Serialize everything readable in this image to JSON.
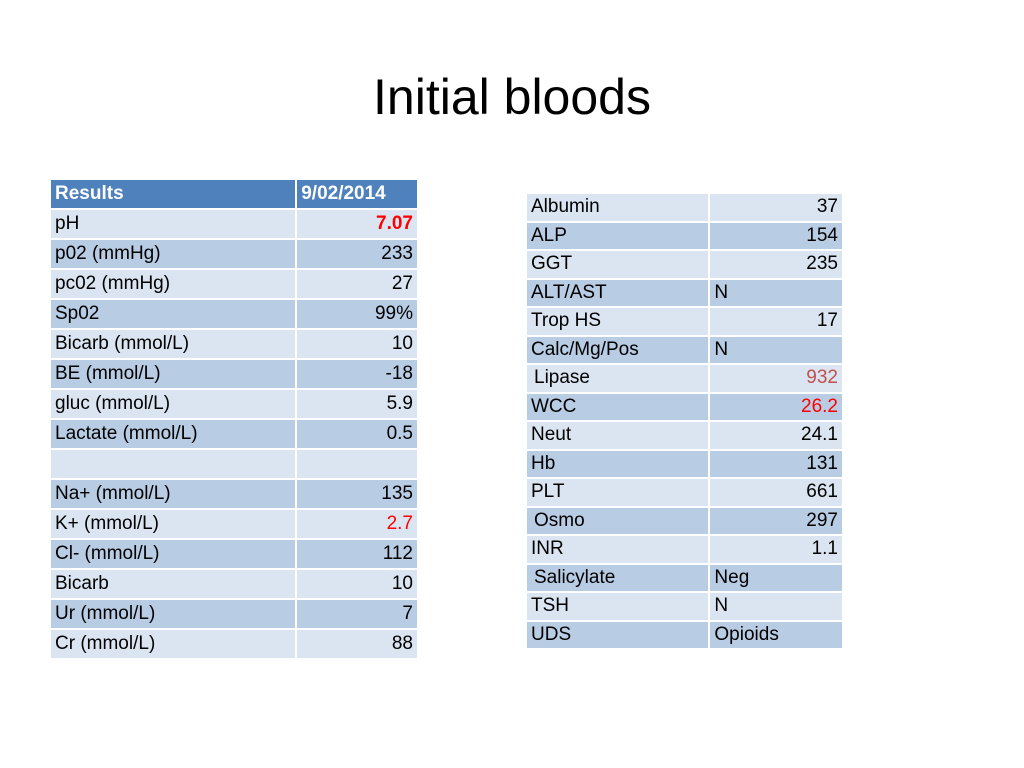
{
  "title": "Initial bloods",
  "left_table": {
    "header": [
      "Results",
      "9/02/2014"
    ],
    "rows": [
      {
        "label": "pH",
        "value": "7.07",
        "highlight": "red-bold"
      },
      {
        "label": "p02 (mmHg)",
        "value": "233"
      },
      {
        "label": "pc02 (mmHg)",
        "value": "27"
      },
      {
        "label": "Sp02",
        "value": "99%"
      },
      {
        "label": "Bicarb (mmol/L)",
        "value": "10"
      },
      {
        "label": "BE (mmol/L)",
        "value": "-18"
      },
      {
        "label": "gluc (mmol/L)",
        "value": "5.9"
      },
      {
        "label": "Lactate (mmol/L)",
        "value": "0.5"
      },
      {
        "label": "",
        "value": ""
      },
      {
        "label": "Na+ (mmol/L)",
        "value": "135"
      },
      {
        "label": "K+ (mmol/L)",
        "value": "2.7",
        "highlight": "red"
      },
      {
        "label": "Cl- (mmol/L)",
        "value": "112"
      },
      {
        "label": "Bicarb",
        "value": "10"
      },
      {
        "label": "Ur (mmol/L)",
        "value": "7"
      },
      {
        "label": "Cr (mmol/L)",
        "value": "88"
      }
    ]
  },
  "right_table": {
    "rows": [
      {
        "label": "Albumin",
        "value": "37"
      },
      {
        "label": "ALP",
        "value": "154"
      },
      {
        "label": "GGT",
        "value": "235"
      },
      {
        "label": "ALT/AST",
        "value": "N",
        "align": "left"
      },
      {
        "label": "Trop HS",
        "value": "17"
      },
      {
        "label": "Calc/Mg/Pos",
        "value": "N",
        "align": "left"
      },
      {
        "label": "Lipase",
        "value": "932",
        "highlight": "dark-red",
        "indent": true
      },
      {
        "label": "WCC",
        "value": "26.2",
        "highlight": "red"
      },
      {
        "label": "Neut",
        "value": "24.1"
      },
      {
        "label": "Hb",
        "value": "131"
      },
      {
        "label": "PLT",
        "value": "661"
      },
      {
        "label": "Osmo",
        "value": "297",
        "indent": true
      },
      {
        "label": "INR",
        "value": "1.1"
      },
      {
        "label": "Salicylate",
        "value": "Neg",
        "align": "left",
        "indent": true
      },
      {
        "label": "TSH",
        "value": "N",
        "align": "left"
      },
      {
        "label": "UDS",
        "value": "Opioids",
        "align": "left"
      }
    ]
  },
  "colors": {
    "header": "#4f81bd",
    "band_dark": "#b8cce4",
    "band_light": "#dbe5f1",
    "abnormal_red": "#ff0000",
    "abnormal_dark_red": "#c0504d"
  }
}
